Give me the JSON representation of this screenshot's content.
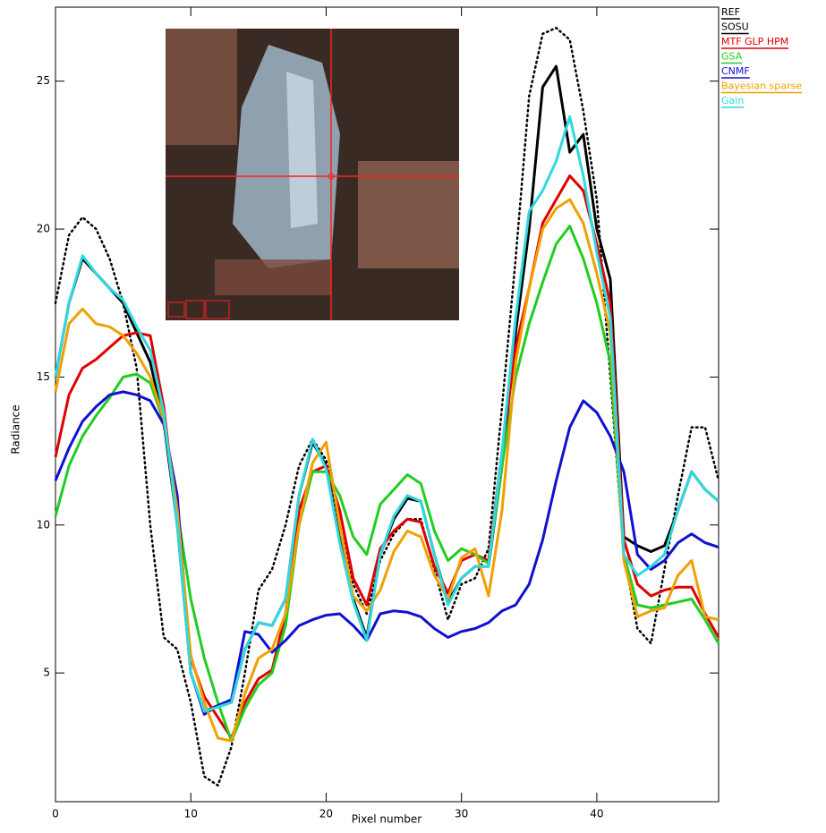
{
  "chart_data": {
    "type": "line",
    "xlabel": "Pixel number",
    "ylabel": "Radiance",
    "xlim": [
      0,
      49
    ],
    "ylim": [
      0.65,
      27.5
    ],
    "xticks": [
      0,
      10,
      20,
      30,
      40
    ],
    "yticks": [
      5,
      10,
      15,
      20,
      25
    ],
    "legend": "outside-top-right",
    "x": [
      0,
      1,
      2,
      3,
      4,
      5,
      6,
      7,
      8,
      9,
      10,
      11,
      12,
      13,
      14,
      15,
      16,
      17,
      18,
      19,
      20,
      21,
      22,
      23,
      24,
      25,
      26,
      27,
      28,
      29,
      30,
      31,
      32,
      33,
      34,
      35,
      36,
      37,
      38,
      39,
      40,
      41,
      42,
      43,
      44,
      45,
      46,
      47,
      48,
      49
    ],
    "series": [
      {
        "name": "REF",
        "color": "#000000",
        "linestyle": "dotted",
        "values": [
          17.5,
          19.8,
          20.4,
          20,
          19,
          17.5,
          15.3,
          10,
          6.2,
          5.8,
          4,
          1.5,
          1.2,
          2.5,
          5,
          7.8,
          8.5,
          10,
          12,
          12.9,
          12.2,
          10,
          8,
          7,
          8.8,
          9.7,
          10.2,
          10.2,
          8.5,
          6.8,
          8,
          8.2,
          9.2,
          14,
          19,
          24.5,
          26.6,
          26.8,
          26.4,
          24,
          21,
          15,
          9,
          6.5,
          6,
          8.5,
          11,
          13.3,
          13.3,
          11.5
        ]
      },
      {
        "name": "SOSU",
        "color": "#000000",
        "linestyle": "solid",
        "values": [
          15,
          17.5,
          19,
          18.5,
          18,
          17.5,
          16.5,
          15.5,
          13.5,
          10,
          5,
          3.7,
          3.9,
          4,
          5.8,
          6.7,
          6.6,
          7.5,
          11,
          12.8,
          12,
          9.5,
          7.5,
          6.2,
          9,
          10.2,
          10.9,
          10.8,
          9,
          7.4,
          8.2,
          8.6,
          8.6,
          12,
          16.5,
          20,
          24.8,
          25.5,
          22.6,
          23.2,
          20,
          18.3,
          9.6,
          9.3,
          9.1,
          9.3,
          10.5,
          11.8,
          11.2,
          10.8
        ]
      },
      {
        "name": "MTF GLP HPM",
        "color": "#e00000",
        "linestyle": "solid",
        "values": [
          12.3,
          14.4,
          15.3,
          15.6,
          16,
          16.4,
          16.5,
          16.4,
          14,
          10,
          5.5,
          4.2,
          3.5,
          2.8,
          4,
          4.8,
          5.1,
          7,
          10.5,
          11.8,
          12,
          10.5,
          8.2,
          7.3,
          9.2,
          9.8,
          10.2,
          10.1,
          8.6,
          7.7,
          8.8,
          9,
          8.8,
          12.5,
          16,
          18,
          20.2,
          21,
          21.8,
          21.3,
          19.5,
          17.5,
          9.5,
          8,
          7.6,
          7.8,
          7.9,
          7.9,
          7,
          6.2
        ]
      },
      {
        "name": "GSA",
        "color": "#22cc22",
        "linestyle": "solid",
        "values": [
          10.3,
          12,
          13,
          13.7,
          14.3,
          15,
          15.1,
          14.8,
          13.5,
          10.5,
          7.5,
          5.5,
          4,
          2.7,
          3.8,
          4.6,
          5,
          6.6,
          10,
          11.8,
          11.8,
          11,
          9.6,
          9,
          10.7,
          11.2,
          11.7,
          11.4,
          9.8,
          8.8,
          9.2,
          9,
          8.7,
          12,
          15,
          16.8,
          18.2,
          19.5,
          20.1,
          19,
          17.5,
          15.5,
          9,
          7.3,
          7.2,
          7.3,
          7.4,
          7.5,
          6.8,
          6
        ]
      },
      {
        "name": "CNMF",
        "color": "#1010d0",
        "linestyle": "solid",
        "values": [
          11.5,
          12.6,
          13.5,
          14,
          14.4,
          14.5,
          14.4,
          14.2,
          13.4,
          11,
          5,
          3.6,
          3.9,
          4.1,
          6.4,
          6.3,
          5.7,
          6.1,
          6.6,
          6.8,
          6.95,
          7,
          6.6,
          6.1,
          7,
          7.1,
          7.05,
          6.9,
          6.5,
          6.2,
          6.4,
          6.5,
          6.7,
          7.1,
          7.3,
          8,
          9.5,
          11.5,
          13.3,
          14.2,
          13.8,
          13,
          11.8,
          9,
          8.5,
          8.8,
          9.4,
          9.7,
          9.4,
          9.25
        ]
      },
      {
        "name": "Bayesian sparse",
        "color": "#f0a000",
        "linestyle": "solid",
        "values": [
          14.5,
          16.8,
          17.3,
          16.8,
          16.7,
          16.4,
          15.8,
          15,
          13.6,
          10.5,
          5.6,
          4,
          2.8,
          2.7,
          4.3,
          5.5,
          5.8,
          7,
          10,
          12.1,
          12.8,
          10,
          7.6,
          7.1,
          7.8,
          9.1,
          9.8,
          9.6,
          8.3,
          7.5,
          8.9,
          9.2,
          7.6,
          10.5,
          15.5,
          18,
          20,
          20.7,
          21,
          20.2,
          18.5,
          16.5,
          8.8,
          6.9,
          7.1,
          7.2,
          8.3,
          8.8,
          6.9,
          6.8
        ]
      },
      {
        "name": "Gain",
        "color": "#30d8e0",
        "linestyle": "solid",
        "values": [
          15,
          17.5,
          19.1,
          18.5,
          18,
          17.6,
          16.7,
          15.9,
          13.8,
          10,
          5,
          3.7,
          3.85,
          4,
          5.8,
          6.7,
          6.6,
          7.5,
          11,
          12.9,
          11.9,
          9.4,
          7.4,
          6.1,
          9,
          10.3,
          11,
          10.8,
          9,
          7.3,
          8.2,
          8.6,
          8.6,
          12.5,
          17,
          20.6,
          21.3,
          22.3,
          23.8,
          21.8,
          19.2,
          17,
          9,
          8.3,
          8.6,
          9,
          10.5,
          11.8,
          11.2,
          10.8
        ]
      }
    ]
  }
}
